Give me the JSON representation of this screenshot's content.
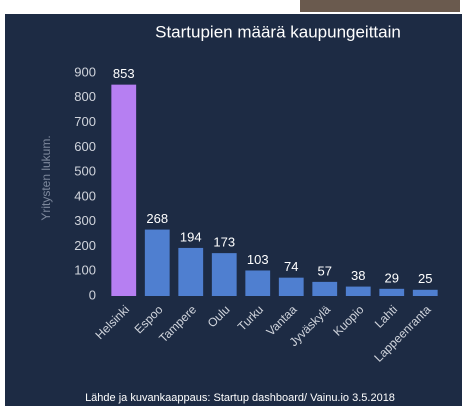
{
  "chart_data": {
    "type": "bar",
    "title": "Startupien määrä kaupungeittain",
    "y_label": "Yritysten lukum.",
    "categories": [
      "Helsinki",
      "Espoo",
      "Tampere",
      "Oulu",
      "Turku",
      "Vantaa",
      "Jyväskylä",
      "Kuopio",
      "Lahti",
      "Lappeenranta"
    ],
    "values": [
      853,
      268,
      194,
      173,
      103,
      74,
      57,
      38,
      29,
      25
    ],
    "colors": [
      "#b67ff2",
      "#4f7fd0",
      "#4f7fd0",
      "#4f7fd0",
      "#4f7fd0",
      "#4f7fd0",
      "#4f7fd0",
      "#4f7fd0",
      "#4f7fd0",
      "#4f7fd0"
    ],
    "ylim": [
      0,
      900
    ],
    "yticks": [
      0,
      100,
      200,
      300,
      400,
      500,
      600,
      700,
      800,
      900
    ],
    "grid": false,
    "source": "Lähde ja kuvankaappaus: Startup dashboard/ Vainu.io 3.5.2018"
  }
}
